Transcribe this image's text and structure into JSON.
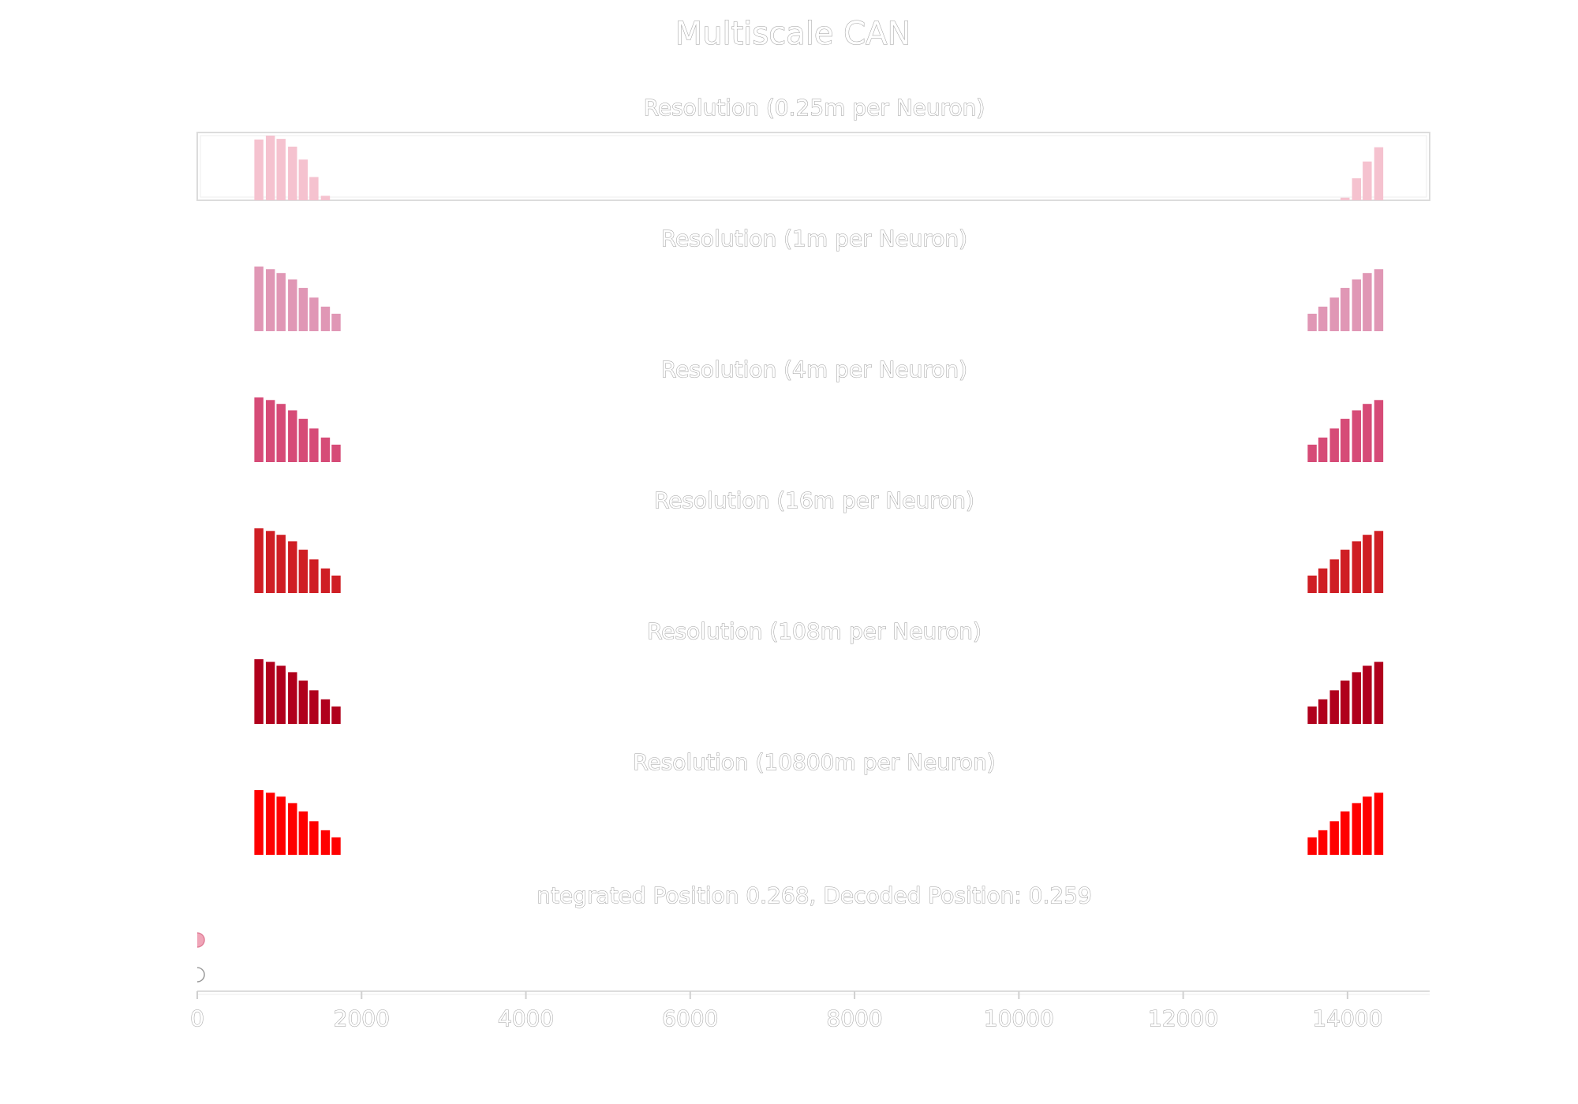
{
  "chart_data": {
    "type": "bar",
    "title": "Multiscale CAN",
    "xlim": [
      0,
      15000
    ],
    "x_ticks": [
      0,
      2000,
      4000,
      6000,
      8000,
      10000,
      12000,
      14000
    ],
    "x_tick_labels": [
      "0",
      "2000",
      "4000",
      "6000",
      "8000",
      "10000",
      "12000",
      "14000"
    ],
    "bar_width": 110,
    "panels": [
      {
        "title": "Resolution (0.25m per Neuron)",
        "color": "#f5c2cf",
        "bordered": true,
        "x": [
          750,
          890,
          1020,
          1160,
          1290,
          1420,
          1560,
          13970,
          14110,
          14240,
          14380
        ],
        "values": [
          0.94,
          1.0,
          0.95,
          0.83,
          0.63,
          0.36,
          0.07,
          0.04,
          0.34,
          0.6,
          0.82
        ]
      },
      {
        "title": "Resolution (1m per Neuron)",
        "color": "#e097b5",
        "bordered": false,
        "x": [
          750,
          890,
          1020,
          1160,
          1290,
          1420,
          1560,
          1690,
          13570,
          13700,
          13840,
          13970,
          14110,
          14240,
          14380
        ],
        "values": [
          1.0,
          0.96,
          0.9,
          0.8,
          0.67,
          0.52,
          0.38,
          0.27,
          0.27,
          0.38,
          0.52,
          0.67,
          0.8,
          0.9,
          0.96
        ]
      },
      {
        "title": "Resolution (4m per Neuron)",
        "color": "#d64b77",
        "bordered": false,
        "x": [
          750,
          890,
          1020,
          1160,
          1290,
          1420,
          1560,
          1690,
          13570,
          13700,
          13840,
          13970,
          14110,
          14240,
          14380
        ],
        "values": [
          1.0,
          0.96,
          0.9,
          0.8,
          0.67,
          0.52,
          0.38,
          0.27,
          0.27,
          0.38,
          0.52,
          0.67,
          0.8,
          0.9,
          0.96
        ]
      },
      {
        "title": "Resolution (16m per Neuron)",
        "color": "#cf1e24",
        "bordered": false,
        "x": [
          750,
          890,
          1020,
          1160,
          1290,
          1420,
          1560,
          1690,
          13570,
          13700,
          13840,
          13970,
          14110,
          14240,
          14380
        ],
        "values": [
          1.0,
          0.96,
          0.9,
          0.8,
          0.67,
          0.52,
          0.38,
          0.27,
          0.27,
          0.38,
          0.52,
          0.67,
          0.8,
          0.9,
          0.96
        ]
      },
      {
        "title": "Resolution (108m per Neuron)",
        "color": "#b0001c",
        "bordered": false,
        "x": [
          750,
          890,
          1020,
          1160,
          1290,
          1420,
          1560,
          1690,
          13570,
          13700,
          13840,
          13970,
          14110,
          14240,
          14380
        ],
        "values": [
          1.0,
          0.96,
          0.9,
          0.8,
          0.67,
          0.52,
          0.38,
          0.27,
          0.27,
          0.38,
          0.52,
          0.67,
          0.8,
          0.9,
          0.96
        ]
      },
      {
        "title": "Resolution (10800m per Neuron)",
        "color": "#ff0000",
        "bordered": false,
        "x": [
          750,
          890,
          1020,
          1160,
          1290,
          1420,
          1560,
          1690,
          13570,
          13700,
          13840,
          13970,
          14110,
          14240,
          14380
        ],
        "values": [
          1.0,
          0.96,
          0.9,
          0.8,
          0.67,
          0.52,
          0.38,
          0.27,
          0.27,
          0.38,
          0.52,
          0.67,
          0.8,
          0.9,
          0.96
        ]
      }
    ],
    "position_panel": {
      "title": "ntegrated Position  0.268, Decoded Position: 0.259",
      "integrated_position": 0.268,
      "decoded_position": 0.259,
      "markers": [
        {
          "label": "integrated",
          "x": 0.268,
          "color": "#f0a5b8"
        },
        {
          "label": "decoded",
          "x": 0.259,
          "color": "#ffffff"
        }
      ]
    }
  }
}
